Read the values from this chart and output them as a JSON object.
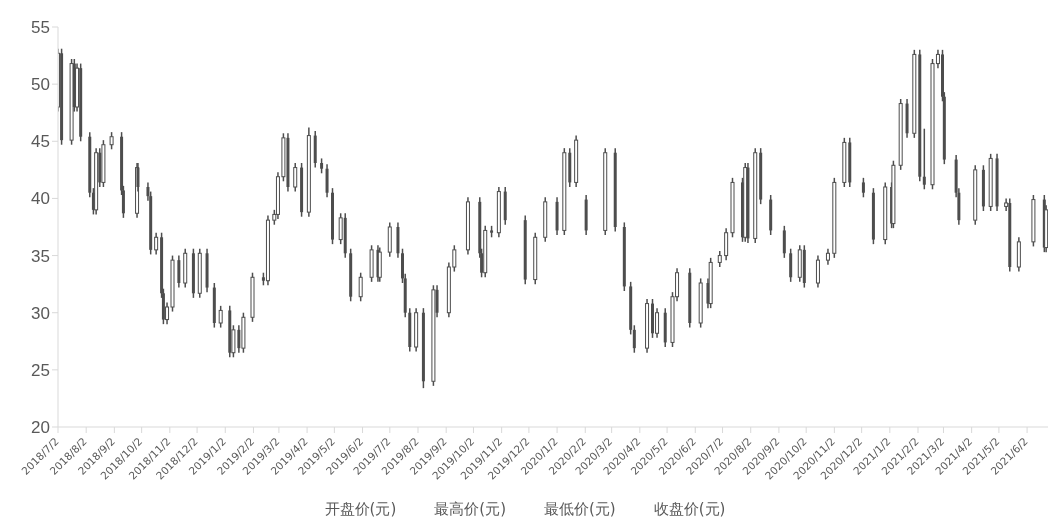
{
  "chart_data": {
    "type": "candlestick",
    "color": "#4d4d4d",
    "annotations": [
      "开盘价(元)",
      "最高价(元)",
      "最低价(元)",
      "收盘价(元)"
    ],
    "ylim": [
      20,
      55
    ],
    "yticks": [
      20,
      25,
      30,
      35,
      40,
      45,
      50,
      55
    ],
    "xlim": [
      "2018-07-02",
      "2021-06-25"
    ],
    "xticks": [
      {
        "value": "2018-07-02",
        "label": "2018/7/2"
      },
      {
        "value": "2018-08-02",
        "label": "2018/8/2"
      },
      {
        "value": "2018-09-02",
        "label": "2018/9/2"
      },
      {
        "value": "2018-10-02",
        "label": "2018/10/2"
      },
      {
        "value": "2018-11-02",
        "label": "2018/11/2"
      },
      {
        "value": "2018-12-02",
        "label": "2018/12/2"
      },
      {
        "value": "2019-01-02",
        "label": "2019/1/2"
      },
      {
        "value": "2019-02-02",
        "label": "2019/2/2"
      },
      {
        "value": "2019-03-02",
        "label": "2019/3/2"
      },
      {
        "value": "2019-04-02",
        "label": "2019/4/2"
      },
      {
        "value": "2019-05-02",
        "label": "2019/5/2"
      },
      {
        "value": "2019-06-02",
        "label": "2019/6/2"
      },
      {
        "value": "2019-07-02",
        "label": "2019/7/2"
      },
      {
        "value": "2019-08-02",
        "label": "2019/8/2"
      },
      {
        "value": "2019-09-02",
        "label": "2019/9/2"
      },
      {
        "value": "2019-10-02",
        "label": "2019/10/2"
      },
      {
        "value": "2019-11-02",
        "label": "2019/11/2"
      },
      {
        "value": "2019-12-02",
        "label": "2019/12/2"
      },
      {
        "value": "2020-01-02",
        "label": "2020/1/2"
      },
      {
        "value": "2020-02-02",
        "label": "2020/2/2"
      },
      {
        "value": "2020-03-02",
        "label": "2020/3/2"
      },
      {
        "value": "2020-04-02",
        "label": "2020/4/2"
      },
      {
        "value": "2020-05-02",
        "label": "2020/5/2"
      },
      {
        "value": "2020-06-02",
        "label": "2020/6/2"
      },
      {
        "value": "2020-07-02",
        "label": "2020/7/2"
      },
      {
        "value": "2020-08-02",
        "label": "2020/8/2"
      },
      {
        "value": "2020-09-02",
        "label": "2020/9/2"
      },
      {
        "value": "2020-10-02",
        "label": "2020/10/2"
      },
      {
        "value": "2020-11-02",
        "label": "2020/11/2"
      },
      {
        "value": "2020-12-02",
        "label": "2020/12/2"
      },
      {
        "value": "2021-01-02",
        "label": "2021/1/2"
      },
      {
        "value": "2021-02-02",
        "label": "2021/2/2"
      },
      {
        "value": "2021-03-02",
        "label": "2021/3/2"
      },
      {
        "value": "2021-04-02",
        "label": "2021/4/2"
      },
      {
        "value": "2021-05-02",
        "label": "2021/5/2"
      },
      {
        "value": "2021-06-02",
        "label": "2021/6/2"
      }
    ],
    "x": [
      "2018-07-02",
      "2018-07-06",
      "2018-07-17",
      "2018-07-20",
      "2018-07-23",
      "2018-07-27",
      "2018-08-06",
      "2018-08-10",
      "2018-08-13",
      "2018-08-17",
      "2018-08-21",
      "2018-08-30",
      "2018-09-10",
      "2018-09-12",
      "2018-09-27",
      "2018-09-28",
      "2018-10-09",
      "2018-10-12",
      "2018-10-18",
      "2018-10-24",
      "2018-10-26",
      "2018-10-30",
      "2018-11-05",
      "2018-11-12",
      "2018-11-19",
      "2018-11-28",
      "2018-12-05",
      "2018-12-13",
      "2018-12-21",
      "2018-12-28",
      "2019-01-07",
      "2019-01-11",
      "2019-01-17",
      "2019-01-22",
      "2019-02-01",
      "2019-02-13",
      "2019-02-18",
      "2019-02-25",
      "2019-03-01",
      "2019-03-07",
      "2019-03-12",
      "2019-03-20",
      "2019-03-27",
      "2019-04-04",
      "2019-04-11",
      "2019-04-18",
      "2019-04-24",
      "2019-04-30",
      "2019-05-09",
      "2019-05-14",
      "2019-05-20",
      "2019-05-31",
      "2019-06-12",
      "2019-06-19",
      "2019-06-21",
      "2019-07-02",
      "2019-07-11",
      "2019-07-16",
      "2019-07-19",
      "2019-07-24",
      "2019-07-31",
      "2019-08-08",
      "2019-08-19",
      "2019-08-23",
      "2019-09-05",
      "2019-09-11",
      "2019-09-26",
      "2019-10-09",
      "2019-10-11",
      "2019-10-15",
      "2019-10-22",
      "2019-10-30",
      "2019-11-06",
      "2019-11-28",
      "2019-12-09",
      "2019-12-20",
      "2020-01-02",
      "2020-01-10",
      "2020-01-16",
      "2020-01-23",
      "2020-02-03",
      "2020-02-24",
      "2020-03-06",
      "2020-03-16",
      "2020-03-23",
      "2020-03-27",
      "2020-04-10",
      "2020-04-16",
      "2020-04-21",
      "2020-04-30",
      "2020-05-08",
      "2020-05-13",
      "2020-05-27",
      "2020-06-08",
      "2020-06-16",
      "2020-06-19",
      "2020-06-29",
      "2020-07-06",
      "2020-07-13",
      "2020-07-24",
      "2020-07-27",
      "2020-07-30",
      "2020-08-07",
      "2020-08-13",
      "2020-08-24",
      "2020-09-08",
      "2020-09-15",
      "2020-09-25",
      "2020-09-30",
      "2020-10-15",
      "2020-10-26",
      "2020-11-02",
      "2020-11-13",
      "2020-11-19",
      "2020-12-04",
      "2020-12-15",
      "2020-12-28",
      "2021-01-04",
      "2021-01-06",
      "2021-01-14",
      "2021-01-21",
      "2021-01-29",
      "2021-02-04",
      "2021-02-09",
      "2021-02-18",
      "2021-02-24",
      "2021-03-01",
      "2021-03-03",
      "2021-03-16",
      "2021-03-19",
      "2021-04-06",
      "2021-04-15",
      "2021-04-23",
      "2021-04-30",
      "2021-05-10",
      "2021-05-14",
      "2021-05-24",
      "2021-06-09",
      "2021-06-21",
      "2021-06-23"
    ],
    "ohlc": [
      [
        48,
        53.1,
        47.6,
        52.7
      ],
      [
        52.7,
        53.1,
        44.7,
        45.1
      ],
      [
        45.1,
        52.2,
        44.7,
        51.8
      ],
      [
        51.8,
        52.2,
        47.6,
        48
      ],
      [
        48,
        51.8,
        47.6,
        51.4
      ],
      [
        51.4,
        51.8,
        45,
        45.4
      ],
      [
        45.4,
        45.8,
        40.1,
        40.5
      ],
      [
        40.5,
        40.9,
        38.6,
        39
      ],
      [
        39,
        44.4,
        38.6,
        44
      ],
      [
        44,
        44.4,
        41,
        41.4
      ],
      [
        41.4,
        45.1,
        41,
        44.7
      ],
      [
        44.7,
        45.8,
        44.3,
        45.4
      ],
      [
        45.4,
        45.8,
        40.3,
        40.7
      ],
      [
        40.7,
        41.1,
        38.3,
        38.7
      ],
      [
        38.7,
        43.1,
        38.3,
        42.7
      ],
      [
        42.7,
        43.1,
        40.6,
        41
      ],
      [
        41,
        41.4,
        39.8,
        40.2
      ],
      [
        40.2,
        40.6,
        35.1,
        35.5
      ],
      [
        35.5,
        37,
        35.1,
        36.6
      ],
      [
        36.6,
        37,
        31.3,
        31.7
      ],
      [
        31.7,
        32.1,
        29,
        29.4
      ],
      [
        29.4,
        30.9,
        29,
        30.5
      ],
      [
        30.5,
        35,
        30.1,
        34.6
      ],
      [
        34.6,
        35,
        32.2,
        32.6
      ],
      [
        32.6,
        35.6,
        32.2,
        35.2
      ],
      [
        35.2,
        35.6,
        31.3,
        31.7
      ],
      [
        31.7,
        35.6,
        31.3,
        35.2
      ],
      [
        35.2,
        35.6,
        31.8,
        32.2
      ],
      [
        32.2,
        32.6,
        28.7,
        29.1
      ],
      [
        29.1,
        30.6,
        28.7,
        30.2
      ],
      [
        30.2,
        30.6,
        26.1,
        26.5
      ],
      [
        26.5,
        28.9,
        26.1,
        28.5
      ],
      [
        28.5,
        28.9,
        26.5,
        26.9
      ],
      [
        26.9,
        30,
        26.5,
        29.6
      ],
      [
        29.6,
        33.5,
        29.2,
        33.1
      ],
      [
        33.1,
        33.5,
        32.4,
        32.8
      ],
      [
        32.8,
        38.5,
        32.4,
        38.1
      ],
      [
        38.1,
        39,
        37.7,
        38.6
      ],
      [
        38.6,
        42.3,
        38.2,
        41.9
      ],
      [
        41.9,
        45.7,
        41.5,
        45.3
      ],
      [
        45.3,
        45.7,
        40.6,
        41
      ],
      [
        41,
        43.1,
        40.6,
        42.7
      ],
      [
        42.7,
        43.1,
        38.4,
        38.8
      ],
      [
        38.8,
        46.2,
        38.4,
        45.5
      ],
      [
        45.5,
        45.9,
        42.7,
        43.1
      ],
      [
        43.1,
        43.5,
        42.2,
        42.6
      ],
      [
        42.6,
        43,
        40.1,
        40.5
      ],
      [
        40.5,
        40.9,
        36,
        36.4
      ],
      [
        36.4,
        38.7,
        36,
        38.3
      ],
      [
        38.3,
        38.7,
        34.8,
        35.2
      ],
      [
        35.2,
        35.6,
        31,
        31.4
      ],
      [
        31.4,
        33.5,
        31,
        33.1
      ],
      [
        33.1,
        35.9,
        32.7,
        35.5
      ],
      [
        35.5,
        35.9,
        32.7,
        33.1
      ],
      [
        33.1,
        35.7,
        32.7,
        35.3
      ],
      [
        35.3,
        37.9,
        34.9,
        37.5
      ],
      [
        37.5,
        37.9,
        34.8,
        35.2
      ],
      [
        35.2,
        35.6,
        32.6,
        33
      ],
      [
        33,
        33.4,
        29.6,
        30
      ],
      [
        30,
        30.4,
        26.6,
        27
      ],
      [
        27,
        30.4,
        26.6,
        30
      ],
      [
        30,
        30.4,
        23.4,
        24
      ],
      [
        24,
        32.4,
        23.6,
        32
      ],
      [
        32,
        32.4,
        29.6,
        30
      ],
      [
        30,
        34.4,
        29.6,
        34
      ],
      [
        34,
        35.9,
        33.6,
        35.5
      ],
      [
        35.5,
        40.1,
        35.1,
        39.7
      ],
      [
        39.7,
        40.1,
        34.8,
        35.2
      ],
      [
        35.2,
        35.6,
        33.1,
        33.5
      ],
      [
        33.5,
        37.6,
        33.1,
        37.2
      ],
      [
        37.2,
        37.6,
        36.6,
        37
      ],
      [
        37,
        41,
        36.6,
        40.6
      ],
      [
        40.6,
        41,
        37.7,
        38.1
      ],
      [
        38.1,
        38.5,
        32.5,
        32.9
      ],
      [
        32.9,
        37,
        32.5,
        36.6
      ],
      [
        36.6,
        40.1,
        36.2,
        39.7
      ],
      [
        39.7,
        40.1,
        36.8,
        37.2
      ],
      [
        37.2,
        44.4,
        36.8,
        44
      ],
      [
        44,
        44.4,
        41,
        41.4
      ],
      [
        41.4,
        45.5,
        41,
        45.1
      ],
      [
        39.9,
        40.3,
        36.8,
        37.2
      ],
      [
        37.2,
        44.4,
        36.8,
        44
      ],
      [
        44,
        44.4,
        37.1,
        37.5
      ],
      [
        37.5,
        37.9,
        31.9,
        32.3
      ],
      [
        32.3,
        32.7,
        28.1,
        28.5
      ],
      [
        28.5,
        28.9,
        26.5,
        26.9
      ],
      [
        26.9,
        31.2,
        26.5,
        30.8
      ],
      [
        30.8,
        31.2,
        27.8,
        28.2
      ],
      [
        28.2,
        30.4,
        27.8,
        30
      ],
      [
        30,
        30.4,
        27,
        27.4
      ],
      [
        27.4,
        31.8,
        27,
        31.4
      ],
      [
        31.4,
        33.9,
        31,
        33.5
      ],
      [
        33.5,
        33.9,
        28.7,
        29.1
      ],
      [
        29.1,
        33,
        28.7,
        32.6
      ],
      [
        32.6,
        33,
        30.4,
        30.8
      ],
      [
        30.8,
        34.8,
        30.4,
        34.4
      ],
      [
        34.4,
        35.4,
        34,
        35
      ],
      [
        35,
        37.4,
        34.6,
        37
      ],
      [
        37,
        41.8,
        36.6,
        41.4
      ],
      [
        41.4,
        41.8,
        36.2,
        36.6
      ],
      [
        36.6,
        43.1,
        36.2,
        42.7
      ],
      [
        42.7,
        43.1,
        36.1,
        36.5
      ],
      [
        36.5,
        44.4,
        36.1,
        44
      ],
      [
        44,
        44.4,
        39.5,
        39.9
      ],
      [
        39.9,
        40.3,
        36.8,
        37.2
      ],
      [
        37.2,
        37.6,
        34.8,
        35.2
      ],
      [
        35.2,
        35.6,
        32.7,
        33.1
      ],
      [
        33.1,
        35.9,
        32.7,
        35.5
      ],
      [
        35.5,
        35.9,
        32.2,
        32.6
      ],
      [
        32.6,
        35,
        32.2,
        34.6
      ],
      [
        34.6,
        35.6,
        34.2,
        35.2
      ],
      [
        35.2,
        41.8,
        34.8,
        41.4
      ],
      [
        41.4,
        45.3,
        41,
        44.9
      ],
      [
        44.9,
        45.3,
        41,
        41.4
      ],
      [
        41.4,
        41.8,
        40.1,
        40.5
      ],
      [
        40.5,
        40.9,
        36,
        36.4
      ],
      [
        36.4,
        41.4,
        36,
        41
      ],
      [
        41,
        41.4,
        37.4,
        37.8
      ],
      [
        37.8,
        43.3,
        37.4,
        42.9
      ],
      [
        42.9,
        48.7,
        42.5,
        48.3
      ],
      [
        48.3,
        48.7,
        45.3,
        45.7
      ],
      [
        45.7,
        53,
        45.3,
        52.6
      ],
      [
        52.6,
        53,
        41.5,
        41.9
      ],
      [
        41.9,
        46.1,
        40.8,
        41.2
      ],
      [
        41.2,
        52.2,
        40.8,
        51.8
      ],
      [
        51.8,
        53,
        51.4,
        52.6
      ],
      [
        52.6,
        53,
        48.5,
        48.9
      ],
      [
        48.9,
        49.3,
        43,
        43.4
      ],
      [
        43.4,
        43.8,
        40.1,
        40.5
      ],
      [
        40.5,
        40.9,
        37.7,
        38.1
      ],
      [
        38.1,
        42.9,
        37.7,
        42.5
      ],
      [
        42.5,
        42.9,
        38.9,
        39.3
      ],
      [
        39.3,
        43.9,
        38.9,
        43.5
      ],
      [
        43.5,
        43.9,
        38.9,
        39.3
      ],
      [
        39.3,
        40,
        38.9,
        39.6
      ],
      [
        39.6,
        40,
        33.6,
        34
      ],
      [
        34,
        36.6,
        33.6,
        36.2
      ],
      [
        36.2,
        40.3,
        35.8,
        39.9
      ],
      [
        39.9,
        40.3,
        35.3,
        35.7
      ],
      [
        35.7,
        39.4,
        35.3,
        39
      ]
    ]
  }
}
